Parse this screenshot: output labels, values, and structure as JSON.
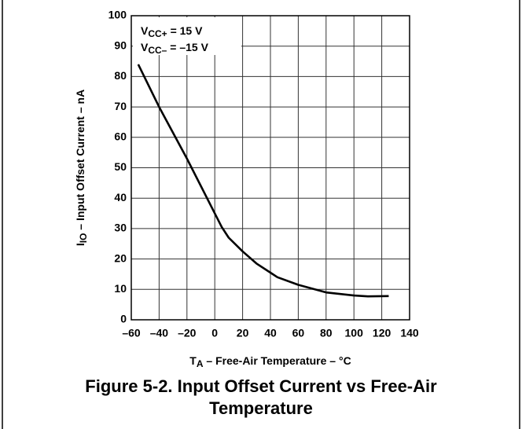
{
  "chart_data": {
    "type": "line",
    "title": "Figure 5-2. Input Offset Current vs Free-Air Temperature",
    "xlabel": {
      "symbol": "T",
      "subscript": "A",
      "text": " – Free-Air Temperature – °C"
    },
    "ylabel": {
      "symbol": "I",
      "subscript": "IO",
      "text": " – Input Offset Current – nA"
    },
    "annotations": [
      {
        "symbol": "V",
        "subscript": "CC+",
        "text": " = 15 V"
      },
      {
        "symbol": "V",
        "subscript": "CC–",
        "text": " = –15 V"
      }
    ],
    "x": [
      -55,
      -40,
      -20,
      0,
      5,
      10,
      20,
      30,
      40,
      45,
      60,
      80,
      100,
      110,
      125
    ],
    "series": [
      {
        "name": "IIO",
        "color": "#000000",
        "values": [
          84,
          70,
          53,
          35,
          30.5,
          27,
          22.5,
          18.5,
          15.5,
          14,
          11.5,
          9,
          8,
          7.7,
          7.8
        ]
      }
    ],
    "xlim": [
      -60,
      140
    ],
    "xticks": [
      {
        "value": -60,
        "label": "–60"
      },
      {
        "value": -40,
        "label": "–40"
      },
      {
        "value": -20,
        "label": "–20"
      },
      0,
      20,
      40,
      60,
      80,
      100,
      120,
      140
    ],
    "ylim": [
      0,
      100
    ],
    "yticks": [
      0,
      10,
      20,
      30,
      40,
      50,
      60,
      70,
      80,
      90,
      100
    ],
    "grid": true
  }
}
